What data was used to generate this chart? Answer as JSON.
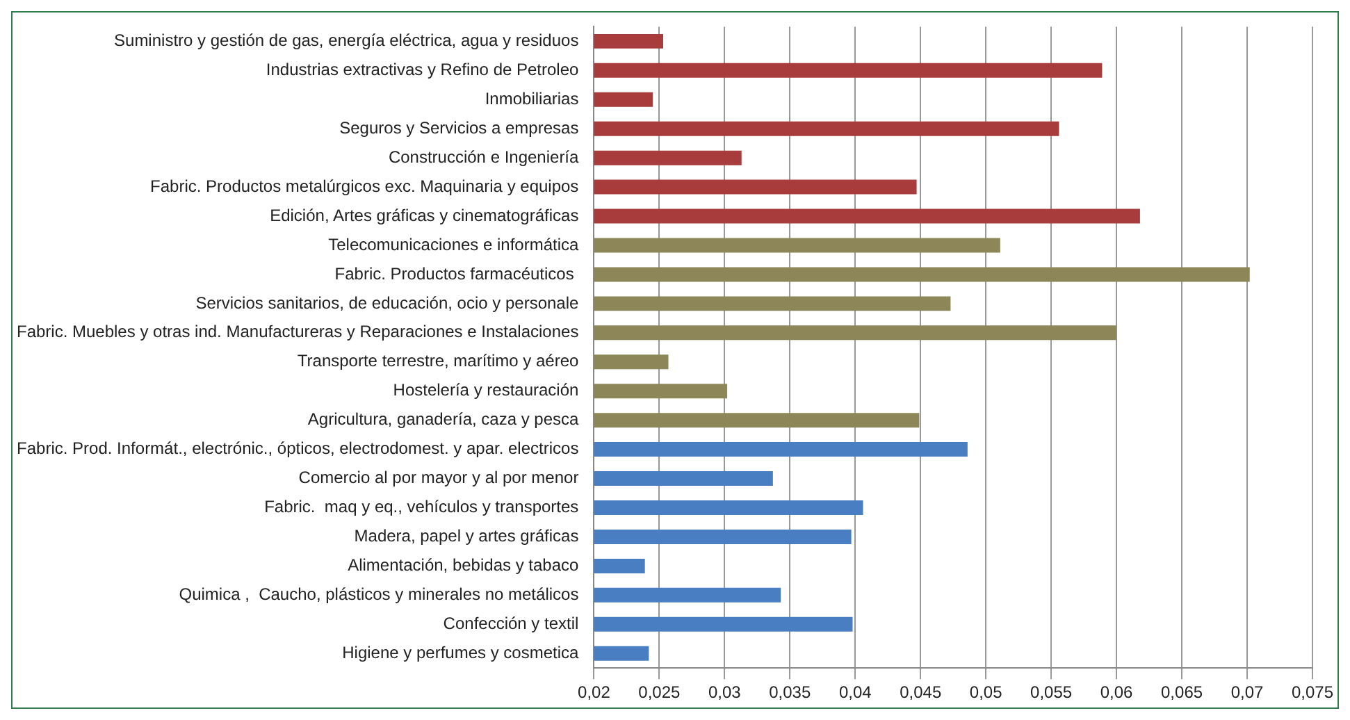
{
  "chart_data": {
    "type": "bar",
    "orientation": "horizontal",
    "categories": [
      "Suministro y gestión de gas, energía eléctrica, agua y residuos",
      "Industrias extractivas y Refino de Petroleo",
      "Inmobiliarias",
      "Seguros y Servicios a empresas",
      "Construcción e Ingeniería",
      "Fabric. Productos metalúrgicos exc. Maquinaria y equipos",
      "Edición, Artes gráficas y cinematográficas",
      "Telecomunicaciones e informática",
      "Fabric. Productos farmacéuticos ",
      "Servicios sanitarios, de educación, ocio y personale",
      "Fabric. Muebles y otras ind. Manufactureras y Reparaciones e Instalaciones",
      "Transporte terrestre, marítimo y aéreo",
      "Hostelería y restauración",
      "Agricultura, ganadería, caza y pesca",
      "Fabric. Prod. Informát., electrónic., ópticos, electrodomest. y apar. electricos",
      "Comercio al por mayor y al por menor",
      "Fabric.  maq y eq., vehículos y transportes",
      "Madera, papel y artes gráficas",
      "Alimentación, bebidas y tabaco",
      "Quimica ,  Caucho, plásticos y minerales no metálicos",
      "Confección y textil",
      "Higiene y perfumes y cosmetica"
    ],
    "values": [
      0.0253,
      0.0589,
      0.0245,
      0.0556,
      0.0313,
      0.0447,
      0.0618,
      0.0511,
      0.0702,
      0.0473,
      0.06,
      0.0257,
      0.0302,
      0.0449,
      0.0486,
      0.0337,
      0.0406,
      0.0397,
      0.0239,
      0.0343,
      0.0398,
      0.0242
    ],
    "colors": [
      "#a83c3c",
      "#a83c3c",
      "#a83c3c",
      "#a83c3c",
      "#a83c3c",
      "#a83c3c",
      "#a83c3c",
      "#8c8658",
      "#8c8658",
      "#8c8658",
      "#8c8658",
      "#8c8658",
      "#8c8658",
      "#8c8658",
      "#4a7ec2",
      "#4a7ec2",
      "#4a7ec2",
      "#4a7ec2",
      "#4a7ec2",
      "#4a7ec2",
      "#4a7ec2",
      "#4a7ec2"
    ],
    "xlim": [
      0.02,
      0.075
    ],
    "xticks": [
      {
        "value": 0.02,
        "label": "0,02"
      },
      {
        "value": 0.025,
        "label": "0,025"
      },
      {
        "value": 0.03,
        "label": "0,03"
      },
      {
        "value": 0.035,
        "label": "0,035"
      },
      {
        "value": 0.04,
        "label": "0,04"
      },
      {
        "value": 0.045,
        "label": "0,045"
      },
      {
        "value": 0.05,
        "label": "0,05"
      },
      {
        "value": 0.055,
        "label": "0,055"
      },
      {
        "value": 0.06,
        "label": "0,06"
      },
      {
        "value": 0.065,
        "label": "0,065"
      },
      {
        "value": 0.07,
        "label": "0,07"
      },
      {
        "value": 0.075,
        "label": "0,075"
      }
    ],
    "grid": "x",
    "legend": false
  }
}
